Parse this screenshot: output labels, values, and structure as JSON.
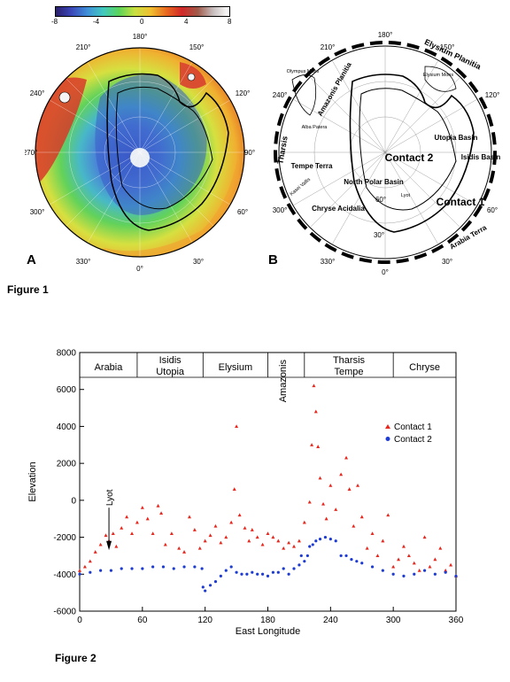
{
  "figure1": {
    "caption": "Figure 1",
    "colorbar": {
      "ticks": [
        "-8",
        "-4",
        "0",
        "4",
        "8"
      ],
      "colors": [
        "#2b1f6e",
        "#3b47b8",
        "#3f8fd8",
        "#40c8c0",
        "#5ad45a",
        "#c8e040",
        "#f0c030",
        "#e86a20",
        "#d02828",
        "#a05a4a",
        "#c8c0c0",
        "#ffffff"
      ]
    },
    "panelA": {
      "letter": "A",
      "longitudes": [
        "180°",
        "210°",
        "150°",
        "240°",
        "120°",
        "270°",
        "90°",
        "300°",
        "60°",
        "330°",
        "30°",
        "0°"
      ]
    },
    "panelB": {
      "letter": "B",
      "longitudes": [
        "180°",
        "210°",
        "150°",
        "240°",
        "120°",
        "300°",
        "60°",
        "330°",
        "30°",
        "0°"
      ],
      "latitudes": [
        "60°",
        "30°"
      ],
      "labels": {
        "elysium_planitia": "Elysium Planitia",
        "amazonis_planitia": "Amazonis Planitia",
        "olympus_mons": "Olympus Mons",
        "elysium_mons": "Elysium Mons",
        "tharsis": "Tharsis",
        "alba_patera": "Alba Patera",
        "utopia_basin": "Utopia Basin",
        "isidis_basin": "Isidis Basin",
        "contact2": "Contact 2",
        "contact1": "Contact 1",
        "tempe_terra": "Tempe Terra",
        "kasei_valles": "Kasei Vallis",
        "north_polar_basin": "North Polar Basin",
        "lyot": "Lyot",
        "chryse_acidalia": "Chryse Acidalia",
        "arabia_terra": "Arabia Terra"
      }
    }
  },
  "figure2": {
    "caption": "Figure 2",
    "region_labels": [
      "Arabia",
      "Isidis Utopia",
      "Elysium",
      "Amazonis",
      "Tharsis Tempe",
      "Chryse"
    ],
    "lyot_label": "Lyot",
    "chart_data": {
      "type": "scatter",
      "xlabel": "East Longitude",
      "ylabel": "Elevation",
      "xlim": [
        0,
        360
      ],
      "ylim": [
        -6000,
        8000
      ],
      "xticks": [
        "0",
        "60",
        "120",
        "180",
        "240",
        "300",
        "360"
      ],
      "yticks": [
        "-6000",
        "-4000",
        "-2000",
        "0",
        "2000",
        "4000",
        "6000",
        "8000"
      ],
      "legend_position": "right",
      "region_boundaries": [
        0,
        55,
        118,
        180,
        215,
        300,
        360
      ],
      "series": [
        {
          "name": "Contact 1",
          "color": "#e8281e",
          "marker": "triangle",
          "x": [
            0,
            5,
            10,
            15,
            20,
            25,
            28,
            32,
            35,
            40,
            45,
            50,
            55,
            60,
            65,
            70,
            75,
            78,
            82,
            88,
            95,
            100,
            105,
            110,
            115,
            120,
            125,
            130,
            135,
            140,
            145,
            148,
            150,
            153,
            158,
            162,
            165,
            170,
            175,
            180,
            185,
            190,
            195,
            200,
            205,
            210,
            215,
            220,
            222,
            224,
            226,
            228,
            230,
            233,
            236,
            240,
            245,
            250,
            255,
            258,
            262,
            266,
            270,
            275,
            280,
            285,
            290,
            295,
            300,
            305,
            310,
            315,
            320,
            325,
            330,
            335,
            340,
            345,
            350,
            355,
            360
          ],
          "y": [
            -3800,
            -3600,
            -3300,
            -2800,
            -2400,
            -1900,
            -2200,
            -1800,
            -2500,
            -1500,
            -900,
            -1800,
            -1200,
            -400,
            -1000,
            -1800,
            -300,
            -700,
            -2400,
            -1800,
            -2600,
            -2800,
            -900,
            -1600,
            -2600,
            -2200,
            -1900,
            -1400,
            -2300,
            -2000,
            -1200,
            600,
            4000,
            -800,
            -1500,
            -2200,
            -1600,
            -2000,
            -2400,
            -1800,
            -2000,
            -2200,
            -2600,
            -2300,
            -2500,
            -2200,
            -1200,
            -100,
            3000,
            6200,
            4800,
            2900,
            1200,
            -200,
            -1000,
            800,
            -500,
            1400,
            2300,
            600,
            -1400,
            800,
            -900,
            -2600,
            -1800,
            -3000,
            -2200,
            -800,
            -3600,
            -3200,
            -2500,
            -3000,
            -3400,
            -3800,
            -2000,
            -3600,
            -3200,
            -2600,
            -3800,
            -3500,
            -4100
          ]
        },
        {
          "name": "Contact 2",
          "color": "#1e3cd2",
          "marker": "circle",
          "x": [
            0,
            10,
            20,
            30,
            40,
            50,
            60,
            70,
            80,
            90,
            100,
            110,
            117,
            118,
            120,
            125,
            130,
            135,
            140,
            145,
            150,
            155,
            160,
            165,
            170,
            175,
            180,
            185,
            190,
            195,
            200,
            205,
            210,
            212,
            215,
            218,
            220,
            223,
            226,
            230,
            235,
            240,
            245,
            250,
            255,
            260,
            265,
            270,
            280,
            290,
            300,
            310,
            320,
            330,
            340,
            350,
            360
          ],
          "y": [
            -4000,
            -3900,
            -3800,
            -3800,
            -3700,
            -3700,
            -3700,
            -3600,
            -3600,
            -3700,
            -3600,
            -3600,
            -3700,
            -4700,
            -4900,
            -4600,
            -4400,
            -4100,
            -3800,
            -3600,
            -3900,
            -4000,
            -4000,
            -3900,
            -4000,
            -4000,
            -4100,
            -3900,
            -3900,
            -3700,
            -4000,
            -3700,
            -3500,
            -3000,
            -3300,
            -3000,
            -2500,
            -2400,
            -2200,
            -2100,
            -2000,
            -2100,
            -2200,
            -3000,
            -3000,
            -3200,
            -3300,
            -3400,
            -3600,
            -3800,
            -4000,
            -4100,
            -4000,
            -3800,
            -4000,
            -3900,
            -4100
          ]
        }
      ]
    }
  }
}
